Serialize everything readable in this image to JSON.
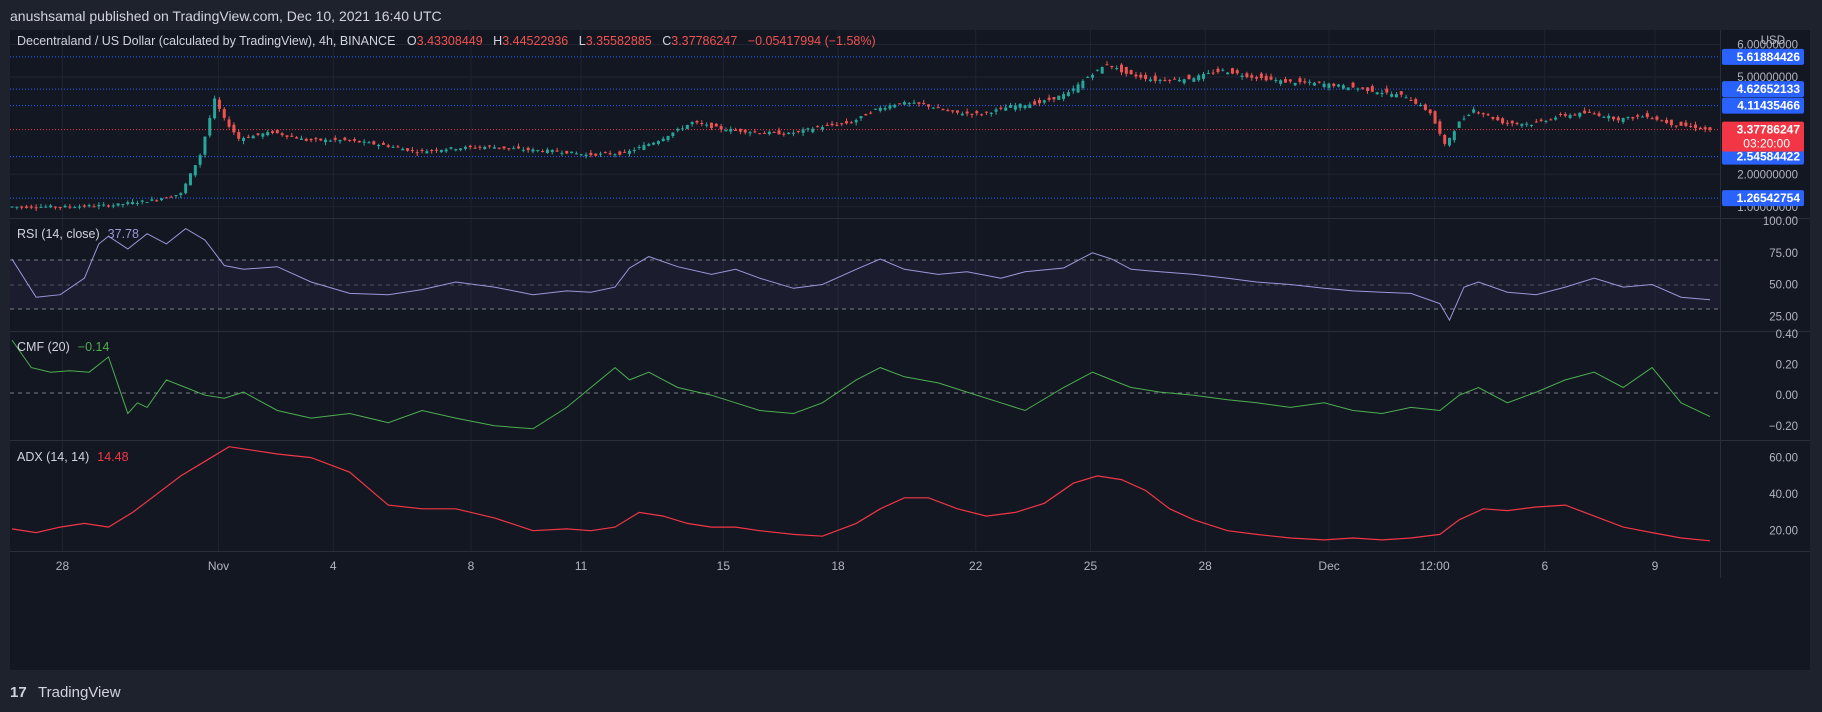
{
  "header": {
    "publisher_line": "anushsamal published on TradingView.com, Dec 10, 2021 16:40 UTC"
  },
  "legend": {
    "symbol": "Decentraland / US Dollar (calculated by TradingView), 4h, BINANCE",
    "o_label": "O",
    "o_value": "3.43308449",
    "h_label": "H",
    "h_value": "3.44522936",
    "l_label": "L",
    "l_value": "3.35582885",
    "c_label": "C",
    "c_value": "3.37786247",
    "change": "−0.05417994 (−1.58%)"
  },
  "footer": {
    "brand": "TradingView",
    "logo_glyph": "17"
  },
  "colors": {
    "background": "#131722",
    "frame": "#1e222d",
    "up": "#26a69a",
    "down": "#ef5350",
    "rsi": "#9c97d8",
    "cmf": "#4caf50",
    "adx": "#f23645",
    "hline": "#2962ff",
    "label_blue": "#2962ff",
    "label_red": "#f23645"
  },
  "chart_data": [
    {
      "type": "candlestick",
      "title": "Decentraland / US Dollar (calculated by TradingView), 4h, BINANCE",
      "ylabel": "USD",
      "yticks": [
        "6.00000000",
        "5.00000000",
        "2.00000000",
        "1.00000000"
      ],
      "ylim": [
        0.9,
        6.2
      ],
      "price_levels": [
        "5.61884426",
        "4.62652133",
        "4.11435466",
        "2.54584422",
        "1.26542754"
      ],
      "last_price": "3.37786247",
      "countdown": "03:20:00",
      "xticks": [
        "28",
        "Nov",
        "4",
        "8",
        "11",
        "15",
        "18",
        "22",
        "25",
        "28",
        "Dec",
        "12:00",
        "6",
        "9"
      ],
      "close_trend": [
        [
          0,
          1.0
        ],
        [
          12,
          1.0
        ],
        [
          22,
          1.05
        ],
        [
          30,
          1.2
        ],
        [
          36,
          1.4
        ],
        [
          40,
          2.6
        ],
        [
          43,
          4.3
        ],
        [
          45,
          3.7
        ],
        [
          48,
          3.1
        ],
        [
          55,
          3.3
        ],
        [
          62,
          3.05
        ],
        [
          70,
          3.05
        ],
        [
          78,
          2.9
        ],
        [
          85,
          2.7
        ],
        [
          92,
          2.8
        ],
        [
          100,
          2.85
        ],
        [
          108,
          2.75
        ],
        [
          115,
          2.7
        ],
        [
          120,
          2.6
        ],
        [
          128,
          2.65
        ],
        [
          135,
          3.05
        ],
        [
          142,
          3.6
        ],
        [
          148,
          3.4
        ],
        [
          155,
          3.3
        ],
        [
          162,
          3.25
        ],
        [
          168,
          3.45
        ],
        [
          175,
          3.6
        ],
        [
          180,
          4.0
        ],
        [
          185,
          4.2
        ],
        [
          190,
          4.15
        ],
        [
          196,
          3.9
        ],
        [
          202,
          3.85
        ],
        [
          208,
          4.1
        ],
        [
          214,
          4.2
        ],
        [
          220,
          4.5
        ],
        [
          224,
          5.0
        ],
        [
          228,
          5.4
        ],
        [
          232,
          5.1
        ],
        [
          238,
          4.9
        ],
        [
          245,
          4.95
        ],
        [
          252,
          5.2
        ],
        [
          258,
          5.0
        ],
        [
          265,
          4.85
        ],
        [
          272,
          4.8
        ],
        [
          278,
          4.7
        ],
        [
          284,
          4.55
        ],
        [
          290,
          4.4
        ],
        [
          295,
          3.9
        ],
        [
          298,
          2.9
        ],
        [
          301,
          3.6
        ],
        [
          304,
          4.0
        ],
        [
          310,
          3.6
        ],
        [
          316,
          3.55
        ],
        [
          322,
          3.8
        ],
        [
          328,
          3.9
        ],
        [
          334,
          3.7
        ],
        [
          340,
          3.8
        ],
        [
          345,
          3.55
        ],
        [
          350,
          3.45
        ],
        [
          352,
          3.38
        ]
      ]
    },
    {
      "type": "line",
      "title": "RSI (14, close)",
      "value_label": "37.78",
      "yticks": [
        "100.00",
        "75.00",
        "50.00",
        "25.00"
      ],
      "ylim": [
        15,
        100
      ],
      "x": [
        0,
        5,
        10,
        15,
        18,
        20,
        24,
        28,
        32,
        36,
        40,
        44,
        48,
        55,
        62,
        70,
        78,
        85,
        92,
        100,
        108,
        115,
        120,
        125,
        128,
        132,
        138,
        145,
        150,
        155,
        162,
        168,
        175,
        180,
        185,
        192,
        198,
        205,
        210,
        218,
        224,
        228,
        232,
        238,
        245,
        252,
        258,
        265,
        272,
        278,
        284,
        290,
        296,
        298,
        301,
        304,
        310,
        316,
        322,
        328,
        334,
        340,
        346,
        352
      ],
      "y": [
        70,
        40,
        42,
        55,
        82,
        88,
        78,
        90,
        82,
        94,
        85,
        65,
        62,
        64,
        52,
        43,
        42,
        46,
        52,
        48,
        42,
        45,
        44,
        48,
        63,
        72,
        64,
        58,
        62,
        55,
        47,
        50,
        62,
        70,
        62,
        58,
        60,
        55,
        60,
        63,
        75,
        70,
        62,
        60,
        58,
        55,
        52,
        50,
        47,
        45,
        44,
        43,
        35,
        22,
        48,
        52,
        44,
        42,
        48,
        55,
        48,
        50,
        40,
        38
      ]
    },
    {
      "type": "line",
      "title": "CMF (20)",
      "value_label": "−0.14",
      "yticks": [
        "0.40",
        "0.20",
        "0.00",
        "−0.20"
      ],
      "ylim": [
        -0.28,
        0.4
      ],
      "x": [
        0,
        4,
        8,
        12,
        16,
        20,
        24,
        26,
        28,
        32,
        36,
        40,
        44,
        48,
        55,
        62,
        70,
        78,
        85,
        92,
        100,
        108,
        115,
        120,
        125,
        128,
        132,
        138,
        145,
        150,
        155,
        162,
        168,
        175,
        180,
        185,
        192,
        198,
        205,
        210,
        218,
        224,
        228,
        232,
        238,
        245,
        252,
        258,
        265,
        272,
        278,
        284,
        290,
        296,
        300,
        304,
        310,
        316,
        322,
        328,
        334,
        340,
        346,
        352
      ],
      "y": [
        0.36,
        0.18,
        0.15,
        0.16,
        0.15,
        0.25,
        -0.12,
        -0.05,
        -0.08,
        0.1,
        0.05,
        0.0,
        -0.02,
        0.02,
        -0.1,
        -0.15,
        -0.12,
        -0.18,
        -0.1,
        -0.15,
        -0.2,
        -0.22,
        -0.08,
        0.05,
        0.18,
        0.1,
        0.15,
        0.05,
        0.0,
        -0.05,
        -0.1,
        -0.12,
        -0.05,
        0.1,
        0.18,
        0.12,
        0.08,
        0.02,
        -0.05,
        -0.1,
        0.05,
        0.15,
        0.1,
        0.05,
        0.02,
        0.0,
        -0.03,
        -0.05,
        -0.08,
        -0.05,
        -0.1,
        -0.12,
        -0.08,
        -0.1,
        0.0,
        0.05,
        -0.05,
        0.02,
        0.1,
        0.15,
        0.05,
        0.18,
        -0.05,
        -0.14
      ]
    },
    {
      "type": "line",
      "title": "ADX (14, 14)",
      "value_label": "14.48",
      "yticks": [
        "60.00",
        "40.00",
        "20.00"
      ],
      "ylim": [
        10,
        68
      ],
      "x": [
        0,
        5,
        10,
        15,
        20,
        25,
        30,
        35,
        40,
        45,
        50,
        55,
        62,
        70,
        78,
        85,
        92,
        100,
        108,
        115,
        120,
        125,
        130,
        135,
        140,
        145,
        150,
        155,
        162,
        168,
        175,
        180,
        185,
        190,
        196,
        202,
        208,
        214,
        220,
        225,
        230,
        235,
        240,
        245,
        252,
        258,
        265,
        272,
        278,
        284,
        290,
        296,
        300,
        305,
        310,
        316,
        322,
        328,
        334,
        340,
        346,
        352
      ],
      "y": [
        21,
        19,
        22,
        24,
        22,
        30,
        40,
        50,
        58,
        66,
        64,
        62,
        60,
        52,
        34,
        32,
        32,
        27,
        20,
        21,
        20,
        22,
        30,
        28,
        24,
        22,
        22,
        20,
        18,
        17,
        24,
        32,
        38,
        38,
        32,
        28,
        30,
        35,
        46,
        50,
        48,
        42,
        32,
        26,
        20,
        18,
        16,
        15,
        16,
        15,
        16,
        18,
        26,
        32,
        31,
        33,
        34,
        28,
        22,
        19,
        16,
        14.5
      ]
    }
  ]
}
